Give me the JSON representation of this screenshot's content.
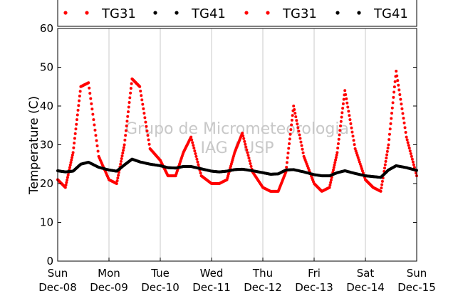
{
  "chart_data": {
    "type": "scatter",
    "title": "",
    "xlabel": "",
    "ylabel": "Temperature (C)",
    "ylim": [
      0,
      60
    ],
    "yticks": [
      0,
      10,
      20,
      30,
      40,
      50,
      60
    ],
    "xlim_days": [
      0,
      7
    ],
    "x_tick_labels": [
      {
        "day": "Sun",
        "date": "Dec-08"
      },
      {
        "day": "Mon",
        "date": "Dec-09"
      },
      {
        "day": "Tue",
        "date": "Dec-10"
      },
      {
        "day": "Wed",
        "date": "Dec-11"
      },
      {
        "day": "Thu",
        "date": "Dec-12"
      },
      {
        "day": "Fri",
        "date": "Dec-13"
      },
      {
        "day": "Sat",
        "date": "Dec-14"
      },
      {
        "day": "Sun",
        "date": "Dec-15"
      }
    ],
    "grid": "vertical",
    "legend_position": "top",
    "legend": [
      "TG31",
      "TG41",
      "TG31",
      "TG41"
    ],
    "watermark": [
      "Grupo de Micrometeorologia",
      "IAG / USP"
    ],
    "series": [
      {
        "name": "TG31",
        "color": "#ff0000",
        "x_dates": [
          "Dec-08",
          "Dec-08",
          "Dec-08",
          "Dec-08",
          "Dec-08",
          "Dec-08",
          "Dec-09",
          "Dec-09",
          "Dec-09",
          "Dec-09",
          "Dec-09",
          "Dec-09",
          "Dec-10",
          "Dec-10",
          "Dec-10",
          "Dec-10",
          "Dec-10",
          "Dec-10",
          "Dec-11",
          "Dec-11",
          "Dec-11",
          "Dec-11",
          "Dec-11",
          "Dec-11",
          "Dec-12",
          "Dec-12",
          "Dec-12",
          "Dec-12",
          "Dec-12",
          "Dec-12",
          "Dec-13",
          "Dec-13",
          "Dec-13",
          "Dec-13",
          "Dec-13",
          "Dec-13",
          "Dec-14",
          "Dec-14",
          "Dec-14",
          "Dec-14",
          "Dec-14",
          "Dec-14",
          "Dec-15"
        ],
        "x": [
          0.0,
          0.15,
          0.3,
          0.45,
          0.6,
          0.8,
          1.0,
          1.15,
          1.3,
          1.45,
          1.6,
          1.8,
          2.0,
          2.15,
          2.3,
          2.45,
          2.6,
          2.8,
          3.0,
          3.15,
          3.3,
          3.45,
          3.6,
          3.8,
          4.0,
          4.15,
          4.3,
          4.45,
          4.6,
          4.8,
          5.0,
          5.15,
          5.3,
          5.45,
          5.6,
          5.8,
          6.0,
          6.15,
          6.3,
          6.45,
          6.6,
          6.8,
          7.0
        ],
        "y": [
          21,
          19,
          28,
          45,
          46,
          27,
          21,
          20,
          30,
          47,
          45,
          29,
          26,
          22,
          22,
          28,
          32,
          22,
          20,
          20,
          21,
          28,
          33,
          23,
          19,
          18,
          18,
          23,
          40,
          27,
          20,
          18,
          19,
          28,
          44,
          29,
          21,
          19,
          18,
          30,
          49,
          32,
          22
        ]
      },
      {
        "name": "TG41",
        "color": "#000000",
        "x_dates": [
          "Dec-08",
          "Dec-08",
          "Dec-08",
          "Dec-08",
          "Dec-08",
          "Dec-08",
          "Dec-09",
          "Dec-09",
          "Dec-09",
          "Dec-09",
          "Dec-09",
          "Dec-09",
          "Dec-10",
          "Dec-10",
          "Dec-10",
          "Dec-10",
          "Dec-10",
          "Dec-10",
          "Dec-11",
          "Dec-11",
          "Dec-11",
          "Dec-11",
          "Dec-11",
          "Dec-11",
          "Dec-12",
          "Dec-12",
          "Dec-12",
          "Dec-12",
          "Dec-12",
          "Dec-12",
          "Dec-13",
          "Dec-13",
          "Dec-13",
          "Dec-13",
          "Dec-13",
          "Dec-13",
          "Dec-14",
          "Dec-14",
          "Dec-14",
          "Dec-14",
          "Dec-14",
          "Dec-14",
          "Dec-15"
        ],
        "x": [
          0.0,
          0.15,
          0.3,
          0.45,
          0.6,
          0.8,
          1.0,
          1.15,
          1.3,
          1.45,
          1.6,
          1.8,
          2.0,
          2.15,
          2.3,
          2.45,
          2.6,
          2.8,
          3.0,
          3.15,
          3.3,
          3.45,
          3.6,
          3.8,
          4.0,
          4.15,
          4.3,
          4.45,
          4.6,
          4.8,
          5.0,
          5.15,
          5.3,
          5.45,
          5.6,
          5.8,
          6.0,
          6.15,
          6.3,
          6.45,
          6.6,
          6.8,
          7.0
        ],
        "y": [
          23.3,
          23.0,
          23.2,
          25.0,
          25.5,
          24.2,
          23.5,
          23.2,
          24.8,
          26.3,
          25.6,
          25.0,
          24.6,
          24.1,
          24.0,
          24.4,
          24.4,
          23.8,
          23.2,
          23.0,
          23.2,
          23.6,
          23.7,
          23.3,
          22.8,
          22.4,
          22.5,
          23.5,
          23.6,
          23.0,
          22.3,
          22.0,
          22.0,
          22.8,
          23.3,
          22.6,
          22.0,
          21.8,
          21.6,
          23.5,
          24.6,
          24.1,
          23.4
        ]
      }
    ]
  }
}
